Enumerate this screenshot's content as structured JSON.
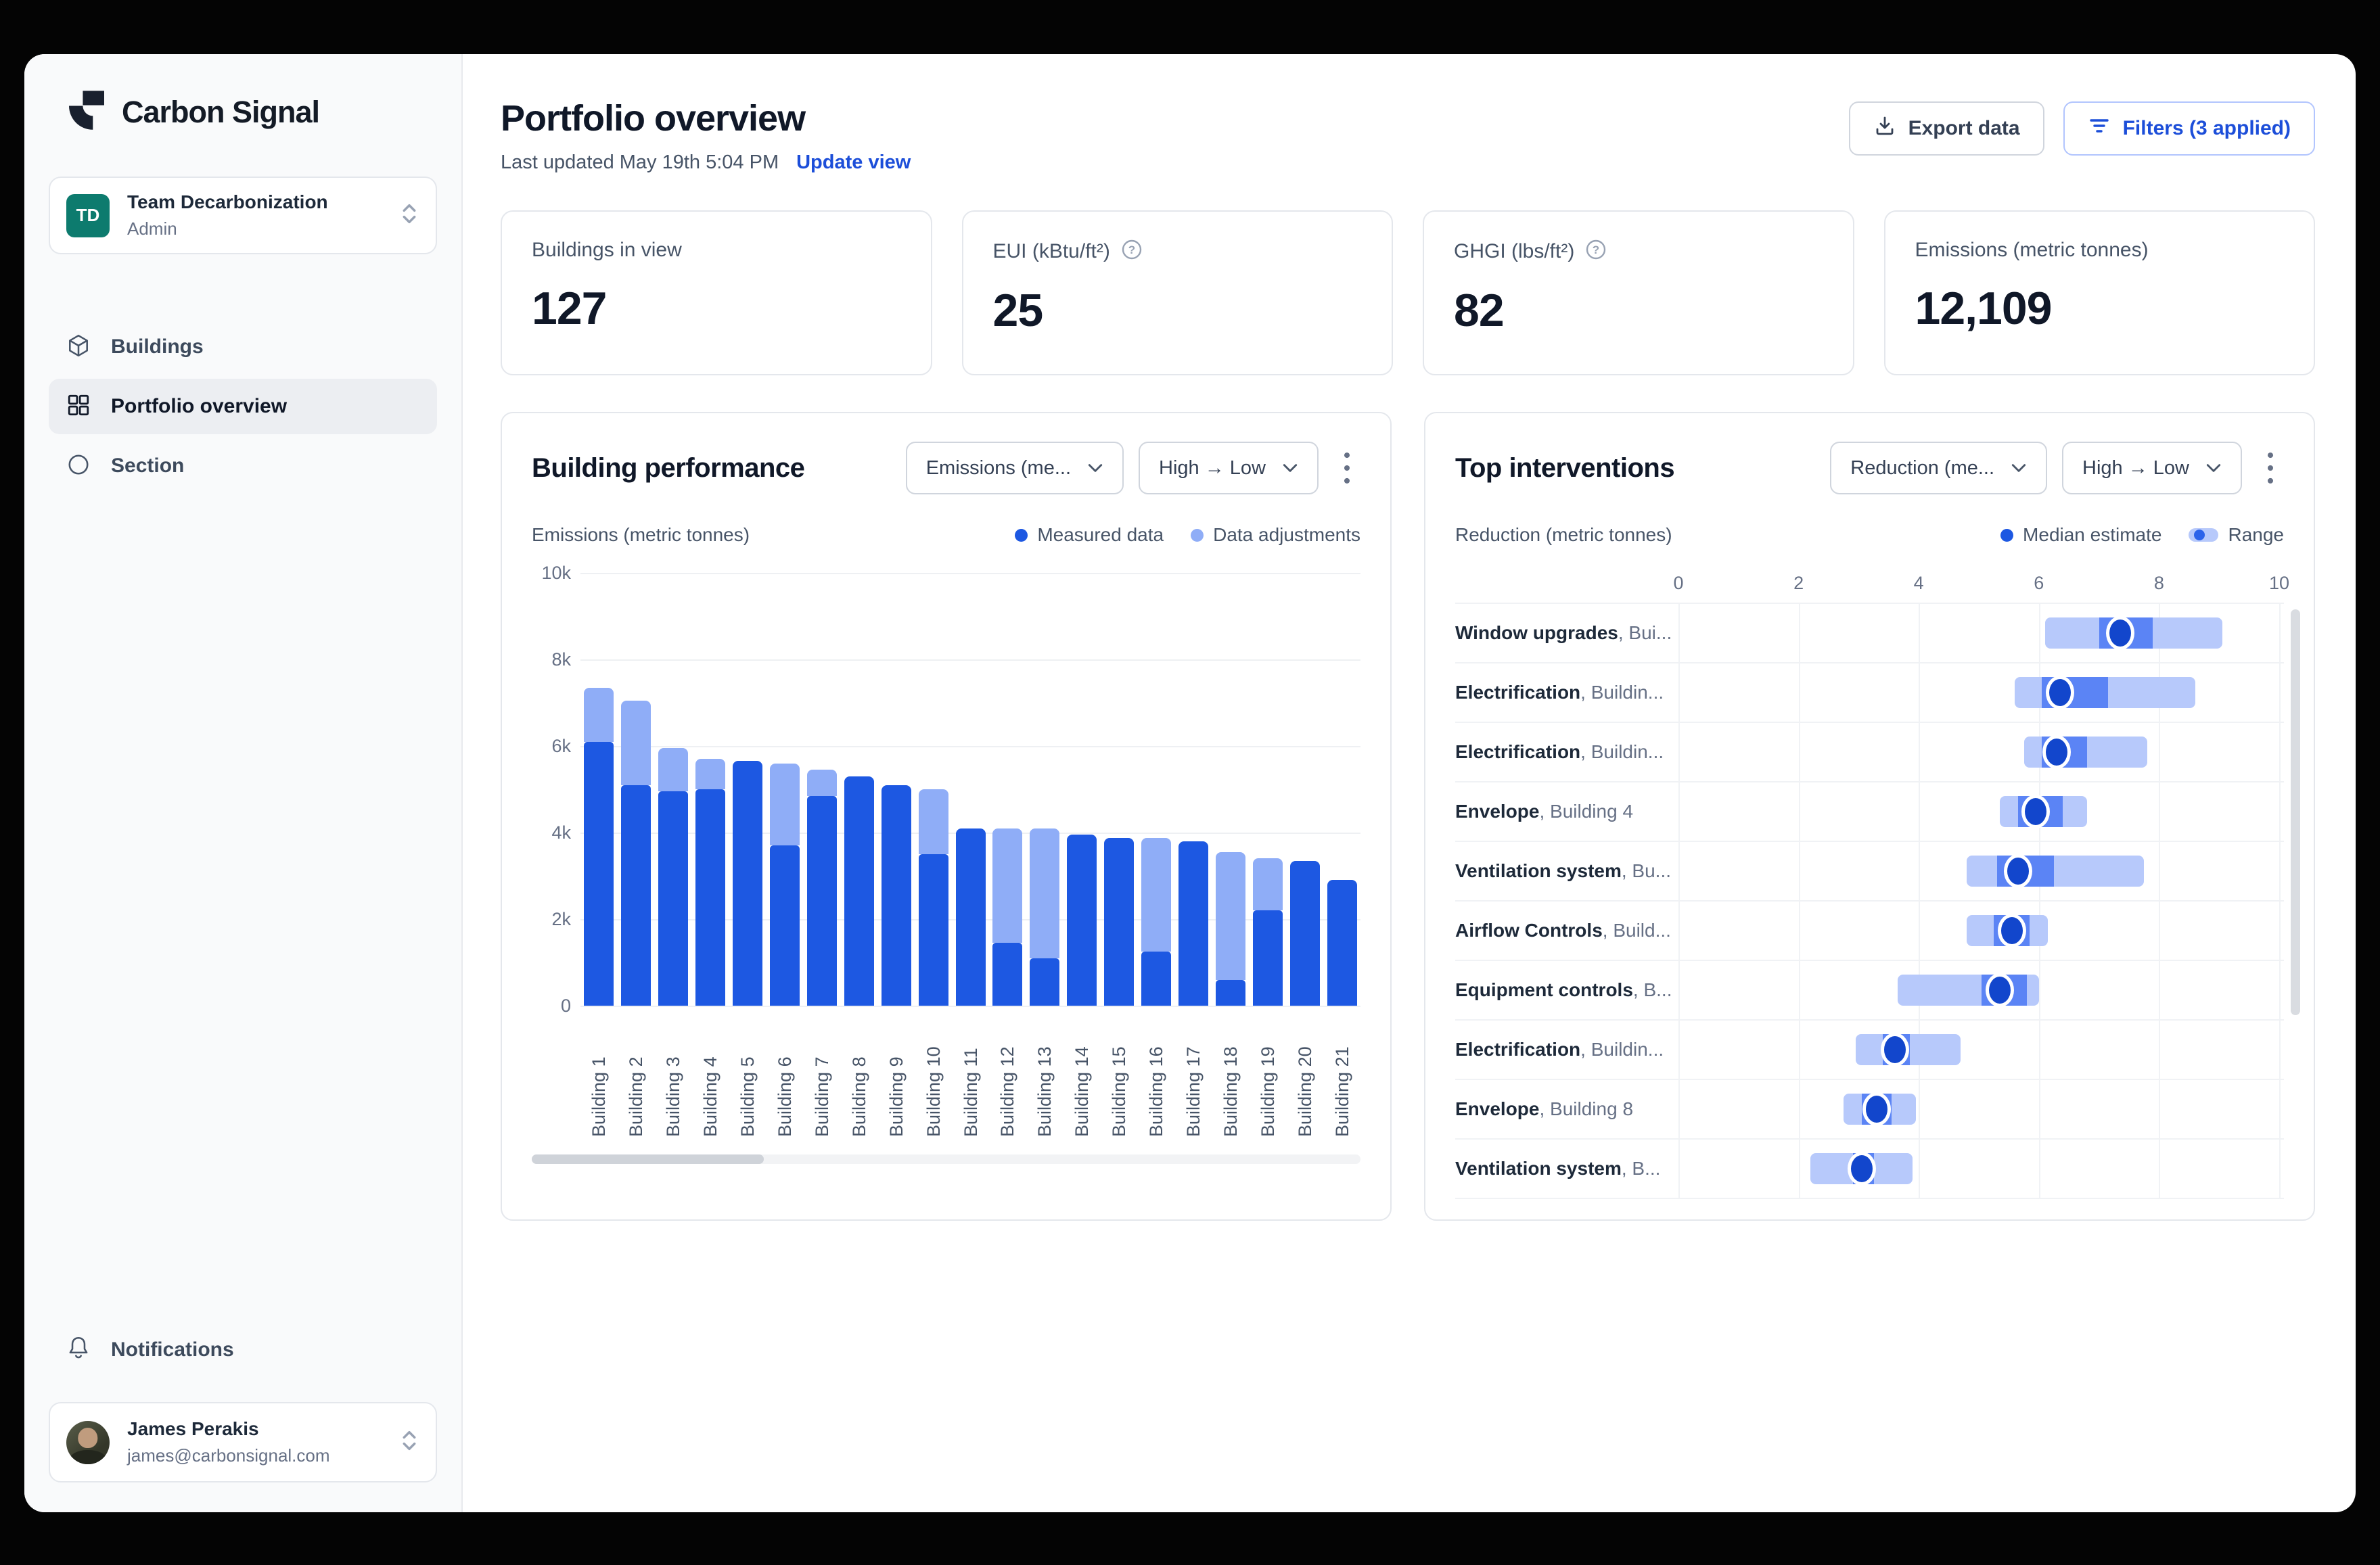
{
  "sidebar": {
    "brand": {
      "name": "Carbon Signal"
    },
    "team_selector": {
      "initials": "TD",
      "name": "Team Decarbonization",
      "role": "Admin"
    },
    "nav": [
      {
        "label": "Buildings",
        "icon": "cube-icon",
        "active": false
      },
      {
        "label": "Portfolio overview",
        "icon": "grid-icon",
        "active": true
      },
      {
        "label": "Section",
        "icon": "circle-icon",
        "active": false
      }
    ],
    "notifications": {
      "label": "Notifications"
    },
    "user": {
      "name": "James Perakis",
      "email": "james@carbonsignal.com"
    }
  },
  "header": {
    "title": "Portfolio overview",
    "last_updated": "Last updated May 19th 5:04 PM",
    "update_view": "Update view",
    "buttons": {
      "export": "Export data",
      "filters": "Filters (3 applied)"
    }
  },
  "kpis": [
    {
      "label": "Buildings in view",
      "value": "127",
      "help_icon": false
    },
    {
      "label": "EUI (kBtu/ft²)",
      "value": "25",
      "help_icon": true
    },
    {
      "label": "GHGI (lbs/ft²)",
      "value": "82",
      "help_icon": true
    },
    {
      "label": "Emissions (metric tonnes)",
      "value": "12,109",
      "help_icon": false
    }
  ],
  "building_performance_panel": {
    "title": "Building performance",
    "metric_select": "Emissions (me...",
    "sort_select": "High → Low",
    "axis_title": "Emissions (metric tonnes)",
    "legend": [
      {
        "label": "Measured data",
        "color": "#1d58e2"
      },
      {
        "label": "Data adjustments",
        "color": "#8fadf7"
      }
    ]
  },
  "top_interventions_panel": {
    "title": "Top interventions",
    "metric_select": "Reduction (me...",
    "sort_select": "High → Low",
    "axis_title": "Reduction (metric tonnes)",
    "legend": [
      {
        "label": "Median estimate",
        "color": "#1d58e2"
      },
      {
        "label": "Range",
        "color": "#b7c9fb"
      }
    ]
  },
  "chart_data": [
    {
      "type": "bar",
      "stacked": true,
      "title": "Building performance",
      "ylabel": "Emissions (metric tonnes)",
      "xlabel": "",
      "ylim": [
        0,
        10000
      ],
      "yticks_top_to_bottom": [
        "10k",
        "8k",
        "6k",
        "4k",
        "2k",
        "0"
      ],
      "grid": true,
      "legend_position": "top-right",
      "x_labels_rotated": true,
      "categories": [
        "Building 1",
        "Building 2",
        "Building 3",
        "Building 4",
        "Building 5",
        "Building 6",
        "Building 7",
        "Building 8",
        "Building 9",
        "Building 10",
        "Building 11",
        "Building 12",
        "Building 13",
        "Building 14",
        "Building 15",
        "Building 16",
        "Building 17",
        "Building 18",
        "Building 19",
        "Building 20",
        "Building 21"
      ],
      "series": [
        {
          "name": "Measured data",
          "color": "#1d58e2",
          "values": [
            6100,
            5100,
            4950,
            5000,
            5650,
            3700,
            4850,
            5300,
            5100,
            3500,
            4100,
            1450,
            1100,
            3950,
            3880,
            1250,
            3800,
            600,
            2200,
            3350,
            2900
          ]
        },
        {
          "name": "Data adjustments",
          "color": "#8fadf7",
          "values": [
            1250,
            1950,
            1000,
            700,
            0,
            1900,
            600,
            0,
            0,
            1500,
            0,
            2650,
            3000,
            0,
            0,
            2620,
            0,
            2950,
            1200,
            0,
            0
          ]
        }
      ]
    },
    {
      "type": "dot-range",
      "title": "Top interventions",
      "xlabel": "Reduction (metric tonnes)",
      "xlim": [
        0,
        10
      ],
      "xticks": [
        0,
        2,
        4,
        6,
        8,
        10
      ],
      "axis_position": "top",
      "grid": true,
      "colors": {
        "range": "#b7c9fb",
        "inner_range": "#5b84f5",
        "median_dot": "#1246cc"
      },
      "rows": [
        {
          "name": "Window upgrades",
          "detail": ", Bui...",
          "range": [
            6.1,
            9.05
          ],
          "inner": [
            7.0,
            7.9
          ],
          "median": 7.35
        },
        {
          "name": "Electrification",
          "detail": ", Buildin...",
          "range": [
            5.6,
            8.6
          ],
          "inner": [
            6.05,
            7.15
          ],
          "median": 6.35
        },
        {
          "name": "Electrification",
          "detail": ", Buildin...",
          "range": [
            5.75,
            7.8
          ],
          "inner": [
            6.05,
            6.8
          ],
          "median": 6.3
        },
        {
          "name": "Envelope",
          "detail": ", Building 4",
          "range": [
            5.35,
            6.8
          ],
          "inner": [
            5.65,
            6.4
          ],
          "median": 5.95
        },
        {
          "name": "Ventilation system",
          "detail": ", Bu...",
          "range": [
            4.8,
            7.75
          ],
          "inner": [
            5.3,
            6.25
          ],
          "median": 5.65
        },
        {
          "name": "Airflow Controls",
          "detail": ", Build...",
          "range": [
            4.8,
            6.15
          ],
          "inner": [
            5.25,
            5.85
          ],
          "median": 5.55
        },
        {
          "name": "Equipment controls",
          "detail": ", B...",
          "range": [
            3.65,
            6.0
          ],
          "inner": [
            5.05,
            5.8
          ],
          "median": 5.35
        },
        {
          "name": "Electrification",
          "detail": ", Buildin...",
          "range": [
            2.95,
            4.7
          ],
          "inner": [
            3.4,
            3.85
          ],
          "median": 3.6
        },
        {
          "name": "Envelope",
          "detail": ", Building 8",
          "range": [
            2.75,
            3.95
          ],
          "inner": [
            3.05,
            3.55
          ],
          "median": 3.3
        },
        {
          "name": "Ventilation system",
          "detail": ", B...",
          "range": [
            2.2,
            3.9
          ],
          "inner": [
            2.9,
            3.25
          ],
          "median": 3.05
        }
      ]
    }
  ],
  "colors": {
    "accent_blue": "#1c4ed9",
    "bar_measured": "#1d58e2",
    "bar_adjustment": "#8fadf7",
    "range_bar": "#b7c9fb",
    "inner_range": "#5b84f5",
    "median_dot": "#1246cc",
    "teal_avatar": "#0d7b6e",
    "gridline": "#eef0f3"
  }
}
